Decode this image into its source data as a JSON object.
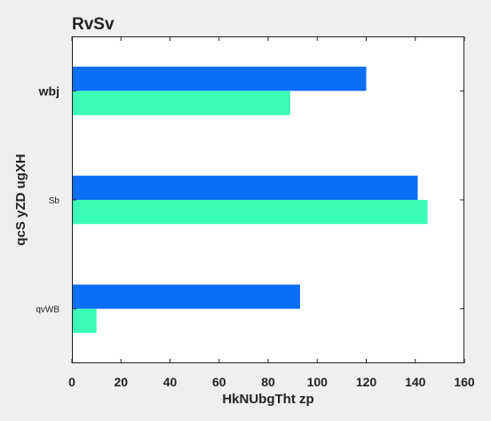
{
  "chart_data": {
    "type": "bar",
    "orientation": "horizontal",
    "title": "RvSv",
    "xlabel": "HkNUbgTht zp",
    "ylabel": "qcS yZD ugXH",
    "categories": [
      "wbj",
      "Sb",
      "qvWB"
    ],
    "category_bold": [
      true,
      false,
      false
    ],
    "series": [
      {
        "values": [
          120,
          141,
          93
        ],
        "color": "#0a6ef7"
      },
      {
        "values": [
          89,
          145,
          10
        ],
        "color": "#3bffb6"
      }
    ],
    "xlim": [
      0,
      160
    ],
    "xticks": [
      "0",
      "20",
      "40",
      "60",
      "80",
      "100",
      "120",
      "140",
      "160"
    ],
    "xtick_values": [
      0,
      20,
      40,
      60,
      80,
      100,
      120,
      140,
      160
    ],
    "grid": false,
    "legend": "none"
  }
}
